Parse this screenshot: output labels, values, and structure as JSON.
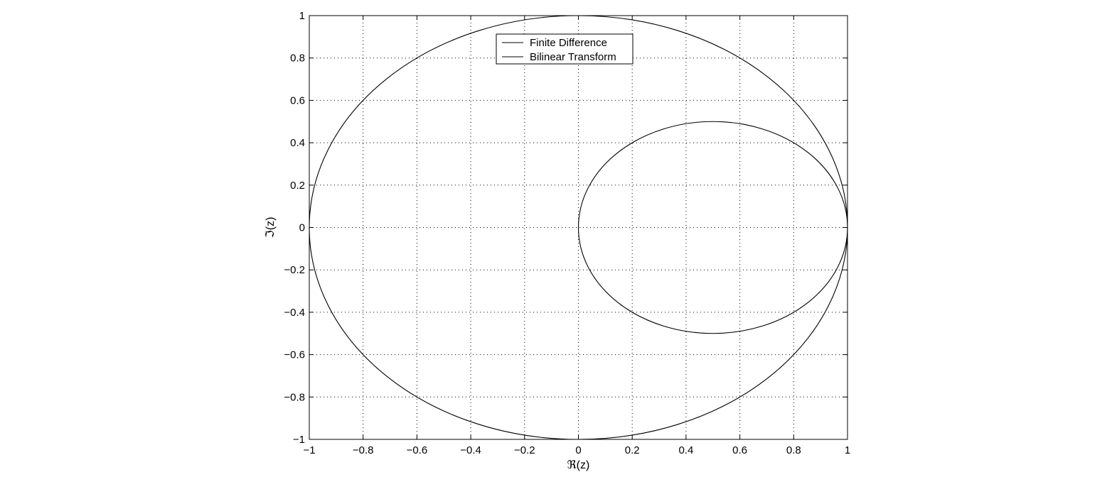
{
  "chart_data": {
    "type": "line",
    "title": "",
    "xlabel": "ℜ(z)",
    "ylabel": "ℑ(z)",
    "xlim": [
      -1,
      1
    ],
    "ylim": [
      -1,
      1
    ],
    "grid": true,
    "legend_position": "top-center",
    "x_ticks": [
      "−1",
      "−0.8",
      "−0.6",
      "−0.4",
      "−0.2",
      "0",
      "0.2",
      "0.4",
      "0.6",
      "0.8",
      "1"
    ],
    "y_ticks": [
      "−1",
      "−0.8",
      "−0.6",
      "−0.4",
      "−0.2",
      "0",
      "0.2",
      "0.4",
      "0.6",
      "0.8",
      "1"
    ],
    "series": [
      {
        "name": "Finite Difference",
        "shape": "circle",
        "center": [
          0.5,
          0
        ],
        "radius": 0.5,
        "color": "#000000"
      },
      {
        "name": "Bilinear Transform",
        "shape": "circle",
        "center": [
          0,
          0
        ],
        "radius": 1,
        "color": "#000000"
      }
    ]
  }
}
